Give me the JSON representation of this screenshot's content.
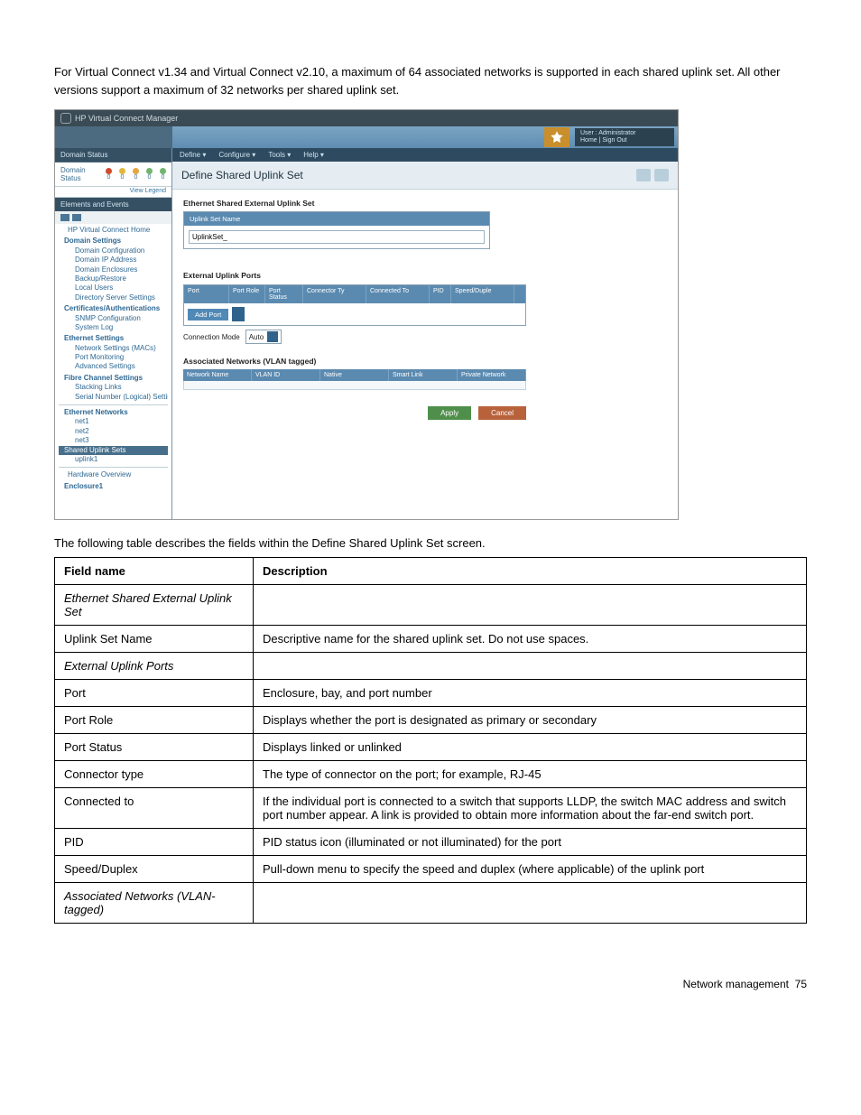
{
  "intro_paragraph": "For Virtual Connect v1.34 and Virtual Connect v2.10, a maximum of 64 associated networks is supported in each shared uplink set. All other versions support a maximum of 32 networks per shared uplink set.",
  "post_paragraph": "The following table describes the fields within the Define Shared Uplink Set screen.",
  "footer": {
    "label": "Network management",
    "page": "75"
  },
  "screenshot": {
    "title": "HP Virtual Connect Manager",
    "colors": {
      "titlebar_bg": "#3a4b55",
      "menubar_bg": "#2d4a60",
      "sidebar_hdr_bg": "#365063",
      "panel_hdr_bg": "#5b8ab0",
      "accent_blue": "#2f638c",
      "link_text": "#2e6893",
      "page_bg": "#ffffff",
      "pagetitle_bg": "#e5edf2",
      "btn_apply": "#4f8f4b",
      "btn_cancel": "#b8623b",
      "badge_bg": "#c98f2c"
    },
    "user_block": {
      "line1": "User : Administrator",
      "line2": "Home | Sign Out"
    },
    "menubar": [
      "Define ▾",
      "Configure ▾",
      "Tools ▾",
      "Help ▾"
    ],
    "domain_status_label": "Domain Status",
    "domain_status_row_label": "Domain Status",
    "status_icons": [
      {
        "color": "#d24a2e",
        "count": "0"
      },
      {
        "color": "#e0b63b",
        "count": "0"
      },
      {
        "color": "#e4a63e",
        "count": "0"
      },
      {
        "color": "#6fb46e",
        "count": "0"
      },
      {
        "color": "#6fb46e",
        "count": "0"
      }
    ],
    "view_legend": "View Legend",
    "elements_header": "Elements and Events",
    "page_title": "Define Shared Uplink Set",
    "tree": [
      {
        "type": "item",
        "level": 1,
        "label": "HP Virtual Connect Home"
      },
      {
        "type": "section",
        "label": "Domain Settings"
      },
      {
        "type": "item",
        "level": 2,
        "label": "Domain Configuration"
      },
      {
        "type": "item",
        "level": 2,
        "label": "Domain IP Address"
      },
      {
        "type": "item",
        "level": 2,
        "label": "Domain Enclosures"
      },
      {
        "type": "item",
        "level": 2,
        "label": "Backup/Restore"
      },
      {
        "type": "item",
        "level": 2,
        "label": "Local Users"
      },
      {
        "type": "item",
        "level": 2,
        "label": "Directory Server Settings"
      },
      {
        "type": "section",
        "label": "Certificates/Authentications"
      },
      {
        "type": "item",
        "level": 2,
        "label": "SNMP Configuration"
      },
      {
        "type": "item",
        "level": 2,
        "label": "System Log"
      },
      {
        "type": "section",
        "label": "Ethernet Settings"
      },
      {
        "type": "item",
        "level": 2,
        "label": "Network Settings (MACs)"
      },
      {
        "type": "item",
        "level": 2,
        "label": "Port Monitoring"
      },
      {
        "type": "item",
        "level": 2,
        "label": "Advanced Settings"
      },
      {
        "type": "section",
        "label": "Fibre Channel Settings"
      },
      {
        "type": "item",
        "level": 2,
        "label": "Stacking Links"
      },
      {
        "type": "item",
        "level": 2,
        "label": "Serial Number (Logical) Settings"
      },
      {
        "type": "hr"
      },
      {
        "type": "section",
        "label": "Ethernet Networks"
      },
      {
        "type": "item",
        "level": 2,
        "label": "net1"
      },
      {
        "type": "item",
        "level": 2,
        "label": "net2"
      },
      {
        "type": "item",
        "level": 2,
        "label": "net3"
      },
      {
        "type": "selected",
        "label": "Shared Uplink Sets"
      },
      {
        "type": "item",
        "level": 2,
        "label": "uplink1"
      },
      {
        "type": "hr"
      },
      {
        "type": "item",
        "level": 1,
        "label": "Hardware Overview"
      },
      {
        "type": "section",
        "label": "Enclosure1"
      }
    ],
    "sections": {
      "s1": {
        "header": "Ethernet Shared External Uplink Set",
        "field_label": "Uplink Set Name",
        "field_value": "UplinkSet_"
      },
      "s2": {
        "header": "External Uplink Ports",
        "columns": [
          "Port",
          "Port Role",
          "Port Status",
          "Connector Ty",
          "Connected To",
          "PID",
          "Speed/Duple"
        ],
        "add_btn": "Add Port",
        "conn_mode_label": "Connection Mode",
        "conn_mode_value": "Auto"
      },
      "s3": {
        "header": "Associated Networks (VLAN tagged)",
        "columns": [
          "Network Name",
          "VLAN ID",
          "Native",
          "Smart Link",
          "Private Network"
        ]
      },
      "buttons": {
        "apply": "Apply",
        "cancel": "Cancel"
      }
    }
  },
  "table": {
    "headers": [
      "Field name",
      "Description"
    ],
    "rows": [
      {
        "name": "Ethernet Shared External Uplink Set",
        "italic": true,
        "desc": ""
      },
      {
        "name": "Uplink Set Name",
        "desc": "Descriptive name for the shared uplink set. Do not use spaces."
      },
      {
        "name": "External Uplink Ports",
        "italic": true,
        "desc": ""
      },
      {
        "name": "Port",
        "desc": "Enclosure, bay, and port number"
      },
      {
        "name": "Port Role",
        "desc": "Displays whether the port is designated as primary or secondary"
      },
      {
        "name": "Port Status",
        "desc": "Displays linked or unlinked"
      },
      {
        "name": "Connector type",
        "desc": "The type of connector on the port; for example, RJ-45"
      },
      {
        "name": "Connected to",
        "desc": "If the individual port is connected to a switch that supports LLDP, the switch MAC address and switch port number appear. A link is provided to obtain more information about the far-end switch port."
      },
      {
        "name": "PID",
        "desc": "PID status icon (illuminated or not illuminated) for the port"
      },
      {
        "name": "Speed/Duplex",
        "desc": "Pull-down menu to specify the speed and duplex (where applicable) of the uplink port"
      },
      {
        "name": "Associated Networks (VLAN-tagged)",
        "italic": true,
        "desc": ""
      }
    ]
  }
}
